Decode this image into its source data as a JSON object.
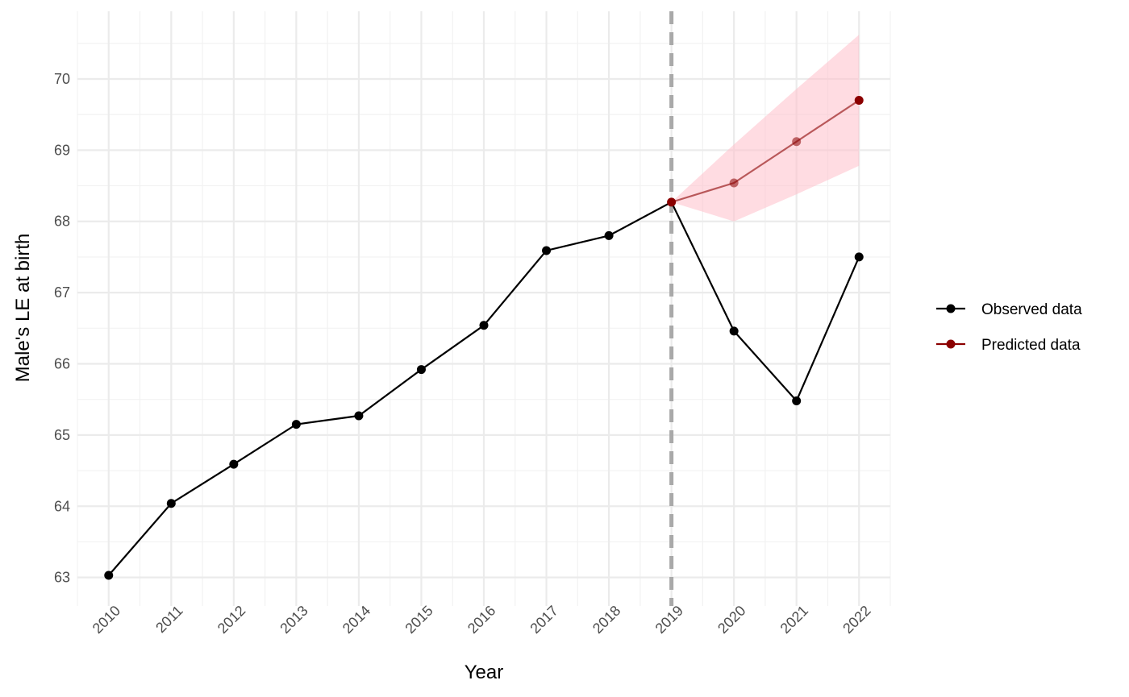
{
  "chart_data": {
    "type": "line",
    "xlabel": "Year",
    "ylabel": "Male's LE at birth",
    "x": [
      2010,
      2011,
      2012,
      2013,
      2014,
      2015,
      2016,
      2017,
      2018,
      2019,
      2020,
      2021,
      2022
    ],
    "xlim": [
      2009.5,
      2022.5
    ],
    "ylim": [
      62.6,
      70.95
    ],
    "y_ticks": [
      63,
      64,
      65,
      66,
      67,
      68,
      69,
      70
    ],
    "grid": true,
    "legend_position": "right",
    "cutoff_year": 2019,
    "series": [
      {
        "name": "Observed data",
        "color": "#000000",
        "x": [
          2010,
          2011,
          2012,
          2013,
          2014,
          2015,
          2016,
          2017,
          2018,
          2019,
          2020,
          2021,
          2022
        ],
        "values": [
          63.03,
          64.04,
          64.59,
          65.15,
          65.27,
          65.92,
          66.54,
          67.59,
          67.8,
          68.27,
          66.46,
          65.48,
          67.5
        ]
      },
      {
        "name": "Predicted data",
        "color": "#8b0000",
        "x": [
          2019,
          2020,
          2021,
          2022
        ],
        "values": [
          68.27,
          68.54,
          69.12,
          69.7
        ],
        "lower": [
          68.27,
          68.0,
          68.38,
          68.78
        ],
        "upper": [
          68.27,
          69.08,
          69.86,
          70.62
        ]
      }
    ],
    "band_color": "#ffc0cb"
  }
}
